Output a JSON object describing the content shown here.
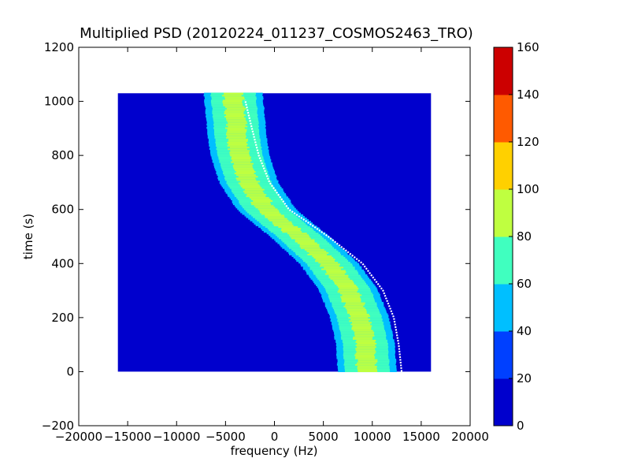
{
  "chart_data": {
    "type": "heatmap",
    "title": "Multiplied PSD (20120224_011237_COSMOS2463_TRO)",
    "xlabel": "frequency (Hz)",
    "ylabel": "time (s)",
    "xlim": [
      -20000,
      20000
    ],
    "ylim": [
      -200,
      1200
    ],
    "x_ticks": [
      -20000,
      -15000,
      -10000,
      -5000,
      0,
      5000,
      10000,
      15000,
      20000
    ],
    "x_tick_labels": [
      "−20000",
      "−15000",
      "−10000",
      "−5000",
      "0",
      "5000",
      "10000",
      "15000",
      "20000"
    ],
    "y_ticks": [
      -200,
      0,
      200,
      400,
      600,
      800,
      1000,
      1200
    ],
    "y_tick_labels": [
      "−200",
      "0",
      "200",
      "400",
      "600",
      "800",
      "1000",
      "1200"
    ],
    "data_extent": {
      "x": [
        -16000,
        16000
      ],
      "y": [
        0,
        1030
      ]
    },
    "background_level": 18,
    "band": {
      "description": "S-shaped Doppler curve",
      "center_track": [
        {
          "time": 0,
          "frequency": 9500
        },
        {
          "time": 100,
          "frequency": 9300
        },
        {
          "time": 200,
          "frequency": 8700
        },
        {
          "time": 300,
          "frequency": 7600
        },
        {
          "time": 400,
          "frequency": 5600
        },
        {
          "time": 500,
          "frequency": 2600
        },
        {
          "time": 600,
          "frequency": -800
        },
        {
          "time": 700,
          "frequency": -2600
        },
        {
          "time": 800,
          "frequency": -3500
        },
        {
          "time": 900,
          "frequency": -3900
        },
        {
          "time": 1030,
          "frequency": -4200
        }
      ],
      "peak_level": 95
    },
    "predicted_track": [
      {
        "time": 0,
        "frequency": 13000
      },
      {
        "time": 100,
        "frequency": 12700
      },
      {
        "time": 200,
        "frequency": 12200
      },
      {
        "time": 300,
        "frequency": 11100
      },
      {
        "time": 400,
        "frequency": 9000
      },
      {
        "time": 500,
        "frequency": 5500
      },
      {
        "time": 600,
        "frequency": 1500
      },
      {
        "time": 700,
        "frequency": -500
      },
      {
        "time": 800,
        "frequency": -1600
      },
      {
        "time": 900,
        "frequency": -2300
      },
      {
        "time": 1005,
        "frequency": -3000
      }
    ],
    "colorbar": {
      "range": [
        0,
        160
      ],
      "ticks": [
        0,
        20,
        40,
        60,
        80,
        100,
        120,
        140,
        160
      ],
      "tick_labels": [
        "0",
        "20",
        "40",
        "60",
        "80",
        "100",
        "120",
        "140",
        "160"
      ],
      "colors": [
        "#0000cd",
        "#0040ff",
        "#00bfff",
        "#40ffbf",
        "#bfff40",
        "#ffd000",
        "#ff5a00",
        "#cc0000"
      ]
    }
  }
}
